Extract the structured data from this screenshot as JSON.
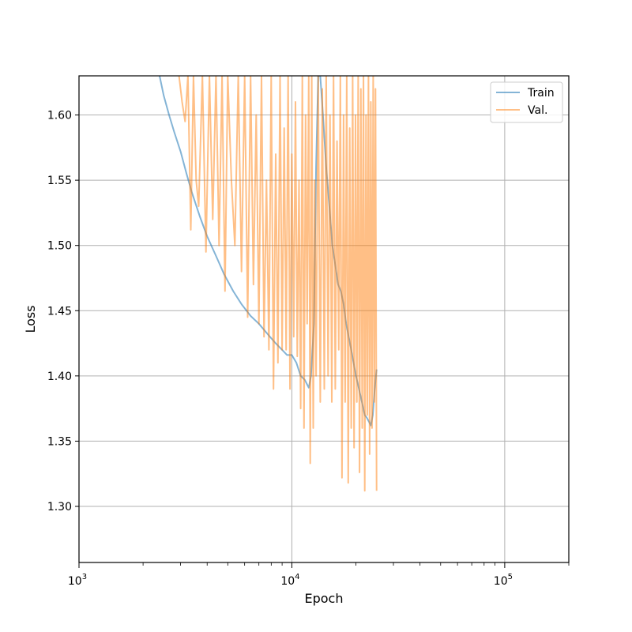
{
  "chart_data": {
    "type": "line",
    "title": "",
    "xlabel": "Epoch",
    "ylabel": "Loss",
    "xscale": "log",
    "xlim": [
      1000,
      200000
    ],
    "ylim": [
      1.257,
      1.63
    ],
    "grid": true,
    "legend_position": "top-right",
    "x_ticks": [
      {
        "value": 1000,
        "base": "10",
        "exp": "3"
      },
      {
        "value": 10000,
        "base": "10",
        "exp": "4"
      },
      {
        "value": 100000,
        "base": "10",
        "exp": "5"
      }
    ],
    "y_ticks": [
      {
        "value": 1.3,
        "label": "1.30"
      },
      {
        "value": 1.35,
        "label": "1.35"
      },
      {
        "value": 1.4,
        "label": "1.40"
      },
      {
        "value": 1.45,
        "label": "1.45"
      },
      {
        "value": 1.5,
        "label": "1.50"
      },
      {
        "value": 1.55,
        "label": "1.55"
      },
      {
        "value": 1.6,
        "label": "1.60"
      }
    ],
    "series": [
      {
        "name": "Train",
        "color": "#1f77b4",
        "opacity": 0.55,
        "x": [
          2390,
          2500,
          2650,
          2800,
          3000,
          3200,
          3400,
          3700,
          4000,
          4400,
          4800,
          5300,
          5800,
          6400,
          7000,
          7700,
          8400,
          9000,
          9500,
          10000,
          10500,
          11000,
          11500,
          12000,
          12300,
          12700,
          13000,
          13300,
          13600,
          14000,
          14500,
          15000,
          15500,
          16000,
          16500,
          17000,
          17500,
          18000,
          18500,
          19000,
          19500,
          20000,
          21000,
          22000,
          22500,
          23000,
          23500,
          24000,
          24500,
          25000
        ],
        "y": [
          1.63,
          1.615,
          1.6,
          1.587,
          1.572,
          1.555,
          1.54,
          1.522,
          1.507,
          1.492,
          1.478,
          1.465,
          1.455,
          1.446,
          1.44,
          1.432,
          1.425,
          1.42,
          1.416,
          1.416,
          1.41,
          1.4,
          1.397,
          1.391,
          1.4,
          1.44,
          1.56,
          1.63,
          1.63,
          1.6,
          1.56,
          1.53,
          1.5,
          1.485,
          1.47,
          1.465,
          1.455,
          1.44,
          1.43,
          1.42,
          1.41,
          1.4,
          1.385,
          1.37,
          1.368,
          1.365,
          1.362,
          1.37,
          1.39,
          1.405
        ]
      },
      {
        "name": "Val.",
        "color": "#ff7f0e",
        "opacity": 0.5,
        "x": [
          2950,
          3050,
          3150,
          3250,
          3350,
          3450,
          3550,
          3650,
          3800,
          3950,
          4100,
          4250,
          4400,
          4550,
          4700,
          4850,
          5000,
          5200,
          5400,
          5600,
          5800,
          6000,
          6200,
          6400,
          6600,
          6800,
          7000,
          7200,
          7400,
          7600,
          7800,
          8000,
          8200,
          8400,
          8600,
          8800,
          9000,
          9200,
          9400,
          9600,
          9800,
          10000,
          10200,
          10400,
          10600,
          10800,
          11000,
          11200,
          11400,
          11600,
          11800,
          12000,
          12200,
          12400,
          12600,
          12800,
          13000,
          13300,
          13600,
          13900,
          14200,
          14500,
          14800,
          15100,
          15400,
          15700,
          16000,
          16300,
          16600,
          16900,
          17200,
          17500,
          17800,
          18100,
          18400,
          18700,
          19000,
          19300,
          19600,
          19900,
          20200,
          20500,
          20800,
          21100,
          21400,
          21700,
          22000,
          22300,
          22600,
          22900,
          23200,
          23500,
          23800,
          24100,
          24400,
          24700,
          25000
        ],
        "y": [
          1.63,
          1.61,
          1.595,
          1.63,
          1.512,
          1.63,
          1.55,
          1.53,
          1.63,
          1.495,
          1.63,
          1.52,
          1.63,
          1.5,
          1.63,
          1.465,
          1.63,
          1.55,
          1.5,
          1.63,
          1.48,
          1.63,
          1.445,
          1.63,
          1.47,
          1.6,
          1.44,
          1.63,
          1.43,
          1.55,
          1.42,
          1.63,
          1.39,
          1.57,
          1.41,
          1.63,
          1.42,
          1.59,
          1.42,
          1.63,
          1.39,
          1.57,
          1.43,
          1.61,
          1.415,
          1.55,
          1.375,
          1.63,
          1.36,
          1.6,
          1.44,
          1.63,
          1.333,
          1.63,
          1.36,
          1.55,
          1.4,
          1.63,
          1.38,
          1.62,
          1.39,
          1.63,
          1.4,
          1.6,
          1.38,
          1.63,
          1.39,
          1.58,
          1.42,
          1.63,
          1.322,
          1.6,
          1.38,
          1.63,
          1.318,
          1.59,
          1.36,
          1.63,
          1.345,
          1.6,
          1.38,
          1.63,
          1.326,
          1.62,
          1.36,
          1.63,
          1.312,
          1.6,
          1.37,
          1.63,
          1.34,
          1.61,
          1.36,
          1.63,
          1.38,
          1.62,
          1.312
        ]
      }
    ]
  }
}
